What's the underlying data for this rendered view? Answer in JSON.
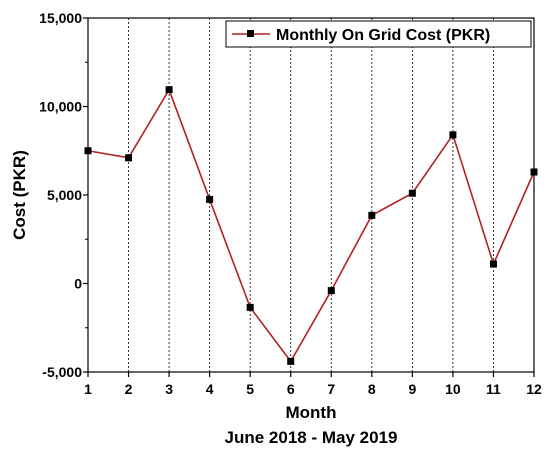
{
  "chart_data": {
    "type": "line",
    "title": "",
    "xlabel": "Month",
    "xlabel2": "June 2018 - May 2019",
    "ylabel": "Cost (PKR)",
    "x": [
      1,
      2,
      3,
      4,
      5,
      6,
      7,
      8,
      9,
      10,
      11,
      12
    ],
    "xlim": [
      1,
      12
    ],
    "ylim": [
      -5000,
      15000
    ],
    "y_ticks": [
      -5000,
      0,
      5000,
      10000,
      15000
    ],
    "y_tick_labels": [
      "-5,000",
      "0",
      "5,000",
      "10,000",
      "15,000"
    ],
    "x_tick_labels": [
      "1",
      "2",
      "3",
      "4",
      "5",
      "6",
      "7",
      "8",
      "9",
      "10",
      "11",
      "12"
    ],
    "grid": "vertical dotted",
    "legend_position": "top-right",
    "series": [
      {
        "name": "Monthly On Grid Cost (PKR)",
        "color": "#b22222",
        "marker": "square",
        "values": [
          7500,
          7100,
          10950,
          4750,
          -1350,
          -4400,
          -400,
          3850,
          5100,
          8400,
          1100,
          6300
        ]
      }
    ]
  }
}
